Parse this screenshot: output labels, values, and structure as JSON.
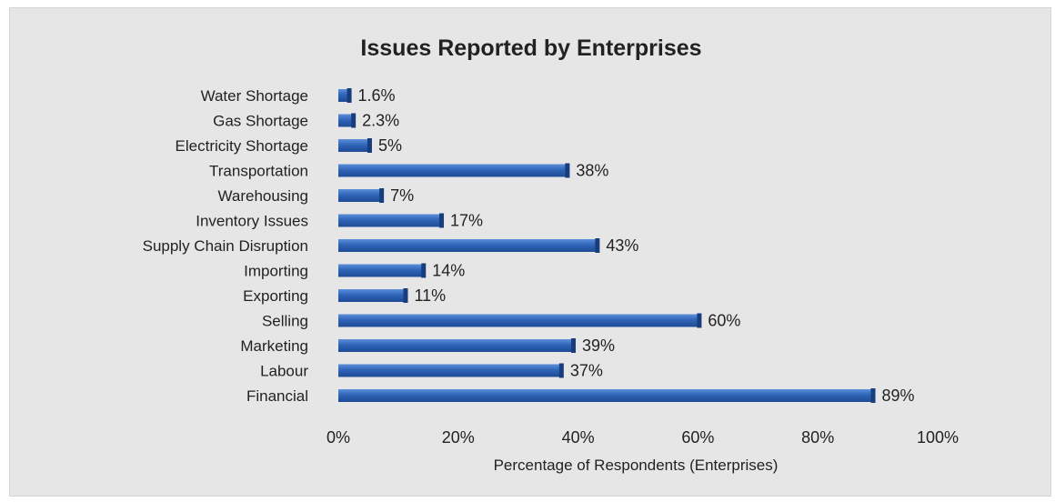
{
  "chart_data": {
    "type": "bar",
    "orientation": "horizontal",
    "title": "Issues Reported by Enterprises",
    "xlabel": "Percentage of Respondents  (Enterprises)",
    "ylabel": "",
    "xlim": [
      0,
      100
    ],
    "x_ticks": [
      "0%",
      "20%",
      "40%",
      "60%",
      "80%",
      "100%"
    ],
    "grid": false,
    "legend": "none",
    "bar_color": "#2f64b8",
    "categories": [
      "Water Shortage",
      "Gas Shortage",
      "Electricity Shortage",
      "Transportation",
      "Warehousing",
      "Inventory Issues",
      "Supply Chain Disruption",
      "Importing",
      "Exporting",
      "Selling",
      "Marketing",
      "Labour",
      "Financial"
    ],
    "values": [
      1.6,
      2.3,
      5,
      38,
      7,
      17,
      43,
      14,
      11,
      60,
      39,
      37,
      89
    ],
    "value_labels": [
      "1.6%",
      "2.3%",
      "5%",
      "38%",
      "7%",
      "17%",
      "43%",
      "14%",
      "11%",
      "60%",
      "39%",
      "37%",
      "89%"
    ]
  }
}
